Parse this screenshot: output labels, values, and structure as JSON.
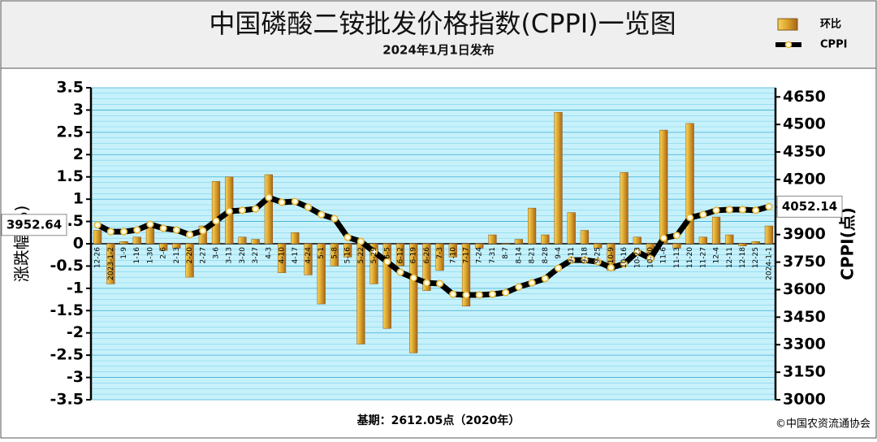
{
  "chart_data": {
    "type": "bar",
    "title": "中国磷酸二铵批发价格指数(CPPI)一览图",
    "subtitle": "2024年1月1日发布",
    "y_label": "涨跌幅(%)",
    "y2_label": "CPPI(点)",
    "footnote": "基期：2612.05点（2020年）",
    "source": "©中国农资流通协会",
    "categories": [
      "12-26",
      "2023-1-2",
      "1-9",
      "1-16",
      "1-30",
      "2-6",
      "2-13",
      "2-20",
      "2-27",
      "3-6",
      "3-13",
      "3-20",
      "3-27",
      "4-3",
      "4-10",
      "4-17",
      "4-24",
      "5-1",
      "5-8",
      "5-16",
      "5-22",
      "5-29",
      "6-5",
      "6-12",
      "6-19",
      "6-26",
      "7-3",
      "7-10",
      "7-17",
      "7-24",
      "7-31",
      "8-7",
      "8-14",
      "8-21",
      "8-28",
      "9-4",
      "9-11",
      "9-18",
      "9-25",
      "10-9",
      "10-16",
      "10-23",
      "10-30",
      "11-6",
      "11-13",
      "11-20",
      "11-27",
      "12-4",
      "12-11",
      "12-18",
      "12-25",
      "2024-1-1"
    ],
    "series": [
      {
        "name": "环比",
        "type": "bar",
        "color": "#d9a22a",
        "values": [
          0.3,
          -0.9,
          0.05,
          0.15,
          0.35,
          -0.15,
          -0.1,
          -0.75,
          0.4,
          1.4,
          1.5,
          0.15,
          0.1,
          1.55,
          -0.65,
          0.25,
          -0.7,
          -1.35,
          -0.5,
          -0.3,
          -2.25,
          -0.9,
          -1.9,
          -0.5,
          -2.45,
          -1.05,
          -0.6,
          -0.3,
          -1.4,
          -0.1,
          0.2,
          0,
          0.1,
          0.8,
          0.2,
          2.95,
          0.7,
          0.3,
          -0.1,
          -0.6,
          1.6,
          0.15,
          -0.35,
          2.55,
          -0.1,
          2.7,
          0.15,
          0.6,
          0.2,
          -0.05,
          0.05,
          0.4
        ]
      },
      {
        "name": "CPPI",
        "type": "line",
        "axis": "y2",
        "color": "#000000",
        "values": [
          3952.64,
          3916,
          3916,
          3925,
          3956,
          3934,
          3925,
          3899,
          3921,
          3974,
          4027,
          4032,
          4040,
          4102,
          4076,
          4080,
          4049,
          4009,
          3987,
          3885,
          3863,
          3806,
          3752,
          3695,
          3664,
          3637,
          3633,
          3575,
          3571,
          3571,
          3575,
          3584,
          3615,
          3637,
          3660,
          3717,
          3761,
          3761,
          3752,
          3720,
          3740,
          3806,
          3770,
          3881,
          3895,
          3992,
          4009,
          4032,
          4036,
          4036,
          4032,
          4052.14
        ]
      }
    ],
    "ylim": [
      -3.5,
      3.5
    ],
    "yticks": [
      -3.5,
      -3,
      -2.5,
      -2,
      -1.5,
      -1,
      -0.5,
      0,
      0.5,
      1,
      1.5,
      2,
      2.5,
      3,
      3.5
    ],
    "y2lim": [
      3000,
      4700
    ],
    "y2ticks": [
      3000,
      3150,
      3300,
      3450,
      3600,
      3750,
      3900,
      4050,
      4200,
      4350,
      4500,
      4650
    ],
    "grid": true
  }
}
